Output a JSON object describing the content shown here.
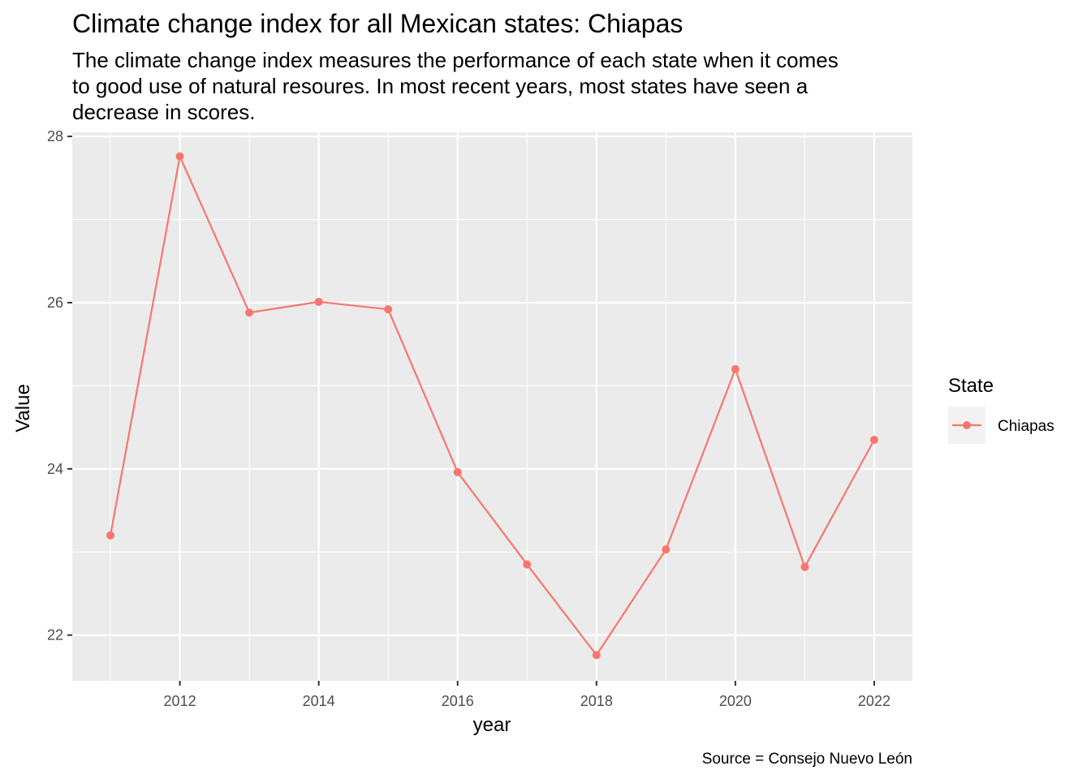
{
  "chart_data": {
    "type": "line",
    "title": "Climate change index for all Mexican states: Chiapas",
    "subtitle_lines": [
      "The climate change index measures the performance of each state when it comes",
      "to good use of natural resoures. In most recent years, most states have seen a",
      "decrease in scores."
    ],
    "xlabel": "year",
    "ylabel": "Value",
    "caption": "Source = Consejo Nuevo León",
    "xlim": [
      2010.45,
      2022.55
    ],
    "ylim": [
      21.45,
      28.05
    ],
    "x_ticks": [
      2012,
      2014,
      2016,
      2018,
      2020,
      2022
    ],
    "y_ticks": [
      22,
      24,
      26,
      28
    ],
    "x_tick_labels": [
      "2012",
      "2014",
      "2016",
      "2018",
      "2020",
      "2022"
    ],
    "y_tick_labels": [
      "22",
      "24",
      "26",
      "28"
    ],
    "grid": true,
    "legend": {
      "title": "State",
      "position": "right"
    },
    "series": [
      {
        "name": "Chiapas",
        "color": "#F8766D",
        "x": [
          2011,
          2012,
          2013,
          2014,
          2015,
          2016,
          2017,
          2018,
          2019,
          2020,
          2021,
          2022
        ],
        "y": [
          23.2,
          27.76,
          25.88,
          26.01,
          25.92,
          23.96,
          22.85,
          21.76,
          23.03,
          25.2,
          22.82,
          24.35
        ]
      }
    ]
  }
}
